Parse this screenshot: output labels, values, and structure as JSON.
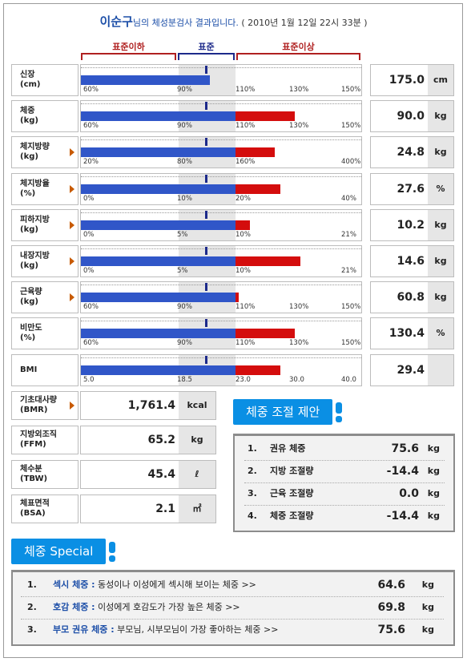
{
  "header": {
    "name": "이순구",
    "suffix": "님의 체성분검사 결과입니다.",
    "datetime": "( 2010년 1월 12일 22시 33분 )"
  },
  "legend": {
    "below": "표준이하",
    "standard": "표준",
    "above": "표준이상",
    "colors": {
      "below": "#b02020",
      "standard": "#1d2a8a",
      "above": "#b02020"
    }
  },
  "colors": {
    "blue_bar": "#3056c8",
    "red_bar": "#d40d0d",
    "standard_band": "#e6e6e6",
    "accent": "#0a8fe4"
  },
  "metrics": [
    {
      "label1": "신장",
      "label2": "(cm)",
      "arrow": false,
      "value": "175.0",
      "unit": "cm",
      "ticks": [
        "60%",
        "90%",
        "110%",
        "130%",
        "150%"
      ],
      "level": 0.46,
      "over": 0
    },
    {
      "label1": "체중",
      "label2": "(kg)",
      "arrow": false,
      "value": "90.0",
      "unit": "kg",
      "ticks": [
        "60%",
        "90%",
        "110%",
        "130%",
        "150%"
      ],
      "level": 0.55,
      "over": 0.21
    },
    {
      "label1": "체지방량",
      "label2": "(kg)",
      "arrow": true,
      "value": "24.8",
      "unit": "kg",
      "ticks": [
        "20%",
        "80%",
        "160%",
        "400%"
      ],
      "level": 0.55,
      "over": 0.14
    },
    {
      "label1": "체지방율",
      "label2": "(%)",
      "arrow": true,
      "value": "27.6",
      "unit": "%",
      "ticks": [
        "0%",
        "10%",
        "20%",
        "40%"
      ],
      "level": 0.55,
      "over": 0.16
    },
    {
      "label1": "피하지방",
      "label2": "(kg)",
      "arrow": true,
      "value": "10.2",
      "unit": "kg",
      "ticks": [
        "0%",
        "5%",
        "10%",
        "21%"
      ],
      "level": 0.55,
      "over": 0.05
    },
    {
      "label1": "내장지방",
      "label2": "(kg)",
      "arrow": true,
      "value": "14.6",
      "unit": "kg",
      "ticks": [
        "0%",
        "5%",
        "10%",
        "21%"
      ],
      "level": 0.55,
      "over": 0.23
    },
    {
      "label1": "근육량",
      "label2": "(kg)",
      "arrow": true,
      "value": "60.8",
      "unit": "kg",
      "ticks": [
        "60%",
        "90%",
        "110%",
        "130%",
        "150%"
      ],
      "level": 0.55,
      "over": 0.01
    },
    {
      "label1": "비만도",
      "label2": "(%)",
      "arrow": false,
      "value": "130.4",
      "unit": "%",
      "ticks": [
        "60%",
        "90%",
        "110%",
        "130%",
        "150%"
      ],
      "level": 0.55,
      "over": 0.21
    },
    {
      "label1": "BMI",
      "label2": "",
      "arrow": false,
      "value": "29.4",
      "unit": "",
      "ticks": [
        "5.0",
        "18.5",
        "23.0",
        "30.0",
        "40.0"
      ],
      "level": 0.55,
      "over": 0.16
    }
  ],
  "measures": [
    {
      "label1": "기초대사량",
      "label2": "(BMR)",
      "arrow": true,
      "value": "1,761.4",
      "unit": "kcal"
    },
    {
      "label1": "지방외조직",
      "label2": "(FFM)",
      "arrow": false,
      "value": "65.2",
      "unit": "kg"
    },
    {
      "label1": "체수분",
      "label2": "(TBW)",
      "arrow": false,
      "value": "45.4",
      "unit": "ℓ"
    },
    {
      "label1": "체표면적",
      "label2": "(BSA)",
      "arrow": false,
      "value": "2.1",
      "unit": "㎡"
    }
  ],
  "proposal": {
    "title": "체중 조절 제안",
    "items": [
      {
        "num": "1.",
        "label": "권유 체중",
        "value": "75.6",
        "unit": "kg"
      },
      {
        "num": "2.",
        "label": "지방 조절량",
        "value": "-14.4",
        "unit": "kg"
      },
      {
        "num": "3.",
        "label": "근육 조절량",
        "value": "0.0",
        "unit": "kg"
      },
      {
        "num": "4.",
        "label": "체중 조절량",
        "value": "-14.4",
        "unit": "kg"
      }
    ]
  },
  "special": {
    "title": "체중 Special",
    "items": [
      {
        "num": "1.",
        "key": "섹시 체중 :",
        "desc": "동성이나 이성에게 섹시해 보이는 체중 >>",
        "value": "64.6",
        "unit": "kg"
      },
      {
        "num": "2.",
        "key": "호감 체중 :",
        "desc": "이성에게 호감도가 가장 높은 체중 >>",
        "value": "69.8",
        "unit": "kg"
      },
      {
        "num": "3.",
        "key": "부모 권유 체중 :",
        "desc": "부모님, 시부모님이 가장 좋아하는 체중 >>",
        "value": "75.6",
        "unit": "kg"
      }
    ]
  }
}
